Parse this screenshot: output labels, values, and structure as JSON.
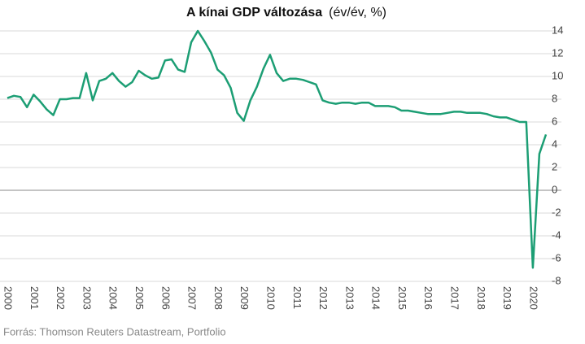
{
  "chart_data": {
    "type": "line",
    "title": "A kínai GDP változása",
    "unit": "(év/év, %)",
    "source": "Forrás: Thomson Reuters Datastream, Portfolio",
    "categories": [
      "2000",
      null,
      null,
      null,
      "2001",
      null,
      null,
      null,
      "2002",
      null,
      null,
      null,
      "2003",
      null,
      null,
      null,
      "2004",
      null,
      null,
      null,
      "2005",
      null,
      null,
      null,
      "2006",
      null,
      null,
      null,
      "2007",
      null,
      null,
      null,
      "2008",
      null,
      null,
      null,
      "2009",
      null,
      null,
      null,
      "2010",
      null,
      null,
      null,
      "2011",
      null,
      null,
      null,
      "2012",
      null,
      null,
      null,
      "2013",
      null,
      null,
      null,
      "2014",
      null,
      null,
      null,
      "2015",
      null,
      null,
      null,
      "2016",
      null,
      null,
      null,
      "2017",
      null,
      null,
      null,
      "2018",
      null,
      null,
      null,
      "2019",
      null,
      null,
      null,
      "2020",
      null,
      null
    ],
    "series": [
      {
        "name": "GDP",
        "color": "#1c9e74",
        "values": [
          8.1,
          8.3,
          8.2,
          7.3,
          8.4,
          7.8,
          7.1,
          6.6,
          8.0,
          8.0,
          8.1,
          8.1,
          10.3,
          7.9,
          9.6,
          9.8,
          10.3,
          9.6,
          9.1,
          9.5,
          10.5,
          10.1,
          9.8,
          9.9,
          11.4,
          11.5,
          10.6,
          10.4,
          13.0,
          14.0,
          13.1,
          12.1,
          10.6,
          10.1,
          9.0,
          6.8,
          6.1,
          7.9,
          9.1,
          10.7,
          11.9,
          10.3,
          9.6,
          9.8,
          9.8,
          9.7,
          9.5,
          9.3,
          7.9,
          7.7,
          7.6,
          7.7,
          7.7,
          7.6,
          7.7,
          7.7,
          7.4,
          7.4,
          7.4,
          7.3,
          7.0,
          7.0,
          6.9,
          6.8,
          6.7,
          6.7,
          6.7,
          6.8,
          6.9,
          6.9,
          6.8,
          6.8,
          6.8,
          6.7,
          6.5,
          6.4,
          6.4,
          6.2,
          6.0,
          6.0,
          -6.8,
          3.2,
          4.9
        ]
      }
    ],
    "ylim": [
      -8,
      14
    ],
    "yticks": [
      -8,
      -6,
      -4,
      -2,
      0,
      2,
      4,
      6,
      8,
      10,
      12,
      14
    ],
    "grid": true
  }
}
